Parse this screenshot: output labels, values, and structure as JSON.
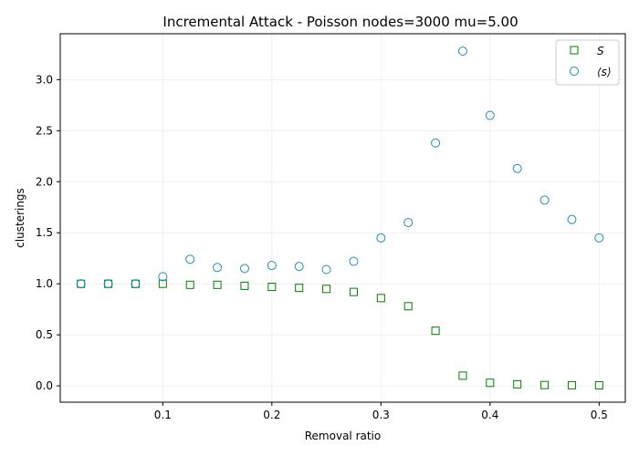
{
  "chart_data": {
    "type": "scatter",
    "title": "Incremental Attack - Poisson nodes=3000 mu=5.00",
    "xlabel": "Removal ratio",
    "ylabel": "clusterings",
    "xlim": [
      0.006,
      0.524
    ],
    "ylim": [
      -0.16,
      3.45
    ],
    "xticks": [
      0.1,
      0.2,
      0.3,
      0.4,
      0.5
    ],
    "xtick_labels": [
      "0.1",
      "0.2",
      "0.3",
      "0.4",
      "0.5"
    ],
    "yticks": [
      0.0,
      0.5,
      1.0,
      1.5,
      2.0,
      2.5,
      3.0
    ],
    "ytick_labels": [
      "0.0",
      "0.5",
      "1.0",
      "1.5",
      "2.0",
      "2.5",
      "3.0"
    ],
    "grid": true,
    "legend_position": "top-right",
    "x": [
      0.025,
      0.05,
      0.075,
      0.1,
      0.125,
      0.15,
      0.175,
      0.2,
      0.225,
      0.25,
      0.275,
      0.3,
      0.325,
      0.35,
      0.375,
      0.4,
      0.425,
      0.45,
      0.475,
      0.5
    ],
    "series": [
      {
        "name": "S",
        "marker": "square",
        "color": "#008000",
        "values": [
          1.0,
          1.0,
          1.0,
          1.0,
          0.99,
          0.99,
          0.98,
          0.97,
          0.96,
          0.95,
          0.92,
          0.86,
          0.78,
          0.54,
          0.1,
          0.03,
          0.015,
          0.008,
          0.006,
          0.005
        ]
      },
      {
        "name": "⟨s⟩",
        "marker": "circle",
        "color": "#1f8fb4",
        "values": [
          1.0,
          1.0,
          1.0,
          1.07,
          1.24,
          1.16,
          1.15,
          1.18,
          1.17,
          1.14,
          1.22,
          1.45,
          1.6,
          2.38,
          3.28,
          2.65,
          2.13,
          1.82,
          1.63,
          1.45
        ]
      }
    ]
  }
}
